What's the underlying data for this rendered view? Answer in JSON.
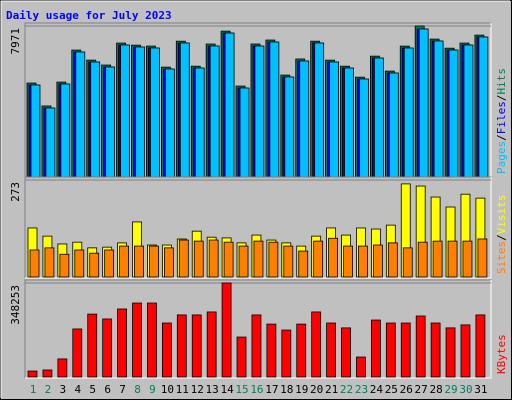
{
  "chart_data": [
    {
      "type": "bar",
      "title": "Daily usage for July 2023",
      "title_color": "#0000ff",
      "ylim": [
        0,
        7971
      ],
      "yticks": [
        7971
      ],
      "legend_separator": "/",
      "series": [
        {
          "name": "Hits",
          "color": "#00805c",
          "values": [
            4960,
            3750,
            5010,
            6700,
            6170,
            5910,
            7070,
            6960,
            6910,
            5800,
            7170,
            5850,
            7020,
            7700,
            4800,
            7020,
            7230,
            5380,
            6230,
            7170,
            6170,
            5850,
            5270,
            6380,
            5590,
            6910,
            7971,
            7280,
            6800,
            7070,
            7490
          ]
        },
        {
          "name": "Files",
          "color": "#0000ff",
          "values": [
            4857,
            3643,
            4910,
            6599,
            6071,
            5807,
            6968,
            6863,
            6810,
            5701,
            7074,
            5754,
            6916,
            7602,
            4698,
            6916,
            7127,
            5279,
            6124,
            7074,
            6071,
            5754,
            5173,
            6282,
            5490,
            6810,
            7813,
            7180,
            6704,
            6968,
            7391
          ]
        },
        {
          "name": "Pages",
          "color": "#00c0ff",
          "values": [
            4857,
            3643,
            4910,
            6599,
            6071,
            5807,
            6968,
            6863,
            6810,
            5701,
            7074,
            5754,
            6916,
            7602,
            4698,
            6916,
            7127,
            5279,
            6124,
            7074,
            6071,
            5754,
            5173,
            6282,
            5490,
            6810,
            7813,
            7180,
            6704,
            6968,
            7391
          ]
        }
      ]
    },
    {
      "type": "bar",
      "ylim": [
        0,
        273
      ],
      "yticks": [
        273
      ],
      "legend_separator": "/",
      "series": [
        {
          "name": "Visits",
          "color": "#ffff00",
          "values": [
            138,
            115,
            93,
            98,
            82,
            84,
            96,
            155,
            90,
            90,
            107,
            129,
            112,
            110,
            96,
            118,
            104,
            96,
            87,
            115,
            138,
            118,
            138,
            135,
            146,
            262,
            256,
            225,
            197,
            233,
            222
          ]
        },
        {
          "name": "Sites",
          "color": "#ff8000",
          "values": [
            76,
            82,
            64,
            76,
            67,
            76,
            87,
            87,
            87,
            82,
            104,
            101,
            104,
            98,
            87,
            101,
            98,
            87,
            73,
            101,
            109,
            87,
            87,
            90,
            96,
            82,
            98,
            101,
            101,
            101,
            107
          ]
        }
      ]
    },
    {
      "type": "bar",
      "ylim": [
        0,
        348253
      ],
      "yticks": [
        348253
      ],
      "categories": [
        "1",
        "2",
        "3",
        "4",
        "5",
        "6",
        "7",
        "8",
        "9",
        "10",
        "11",
        "12",
        "13",
        "14",
        "15",
        "16",
        "17",
        "18",
        "19",
        "20",
        "21",
        "22",
        "23",
        "24",
        "25",
        "26",
        "27",
        "28",
        "29",
        "30",
        "31"
      ],
      "category_colors": [
        "#00805c",
        "#00805c",
        "#000000",
        "#000000",
        "#000000",
        "#000000",
        "#000000",
        "#00805c",
        "#00805c",
        "#000000",
        "#000000",
        "#000000",
        "#000000",
        "#000000",
        "#00805c",
        "#00805c",
        "#000000",
        "#000000",
        "#000000",
        "#000000",
        "#000000",
        "#00805c",
        "#00805c",
        "#000000",
        "#000000",
        "#000000",
        "#000000",
        "#000000",
        "#00805c",
        "#00805c",
        "#000000"
      ],
      "series": [
        {
          "name": "KBytes",
          "color": "#ff0000",
          "values": [
            22000,
            26000,
            67000,
            178000,
            233000,
            215000,
            252000,
            274000,
            274000,
            200000,
            230000,
            230000,
            241000,
            348253,
            148000,
            230000,
            196000,
            174000,
            196000,
            241000,
            200000,
            182000,
            74000,
            211000,
            200000,
            200000,
            226000,
            200000,
            182000,
            193000,
            230000
          ]
        }
      ]
    }
  ]
}
